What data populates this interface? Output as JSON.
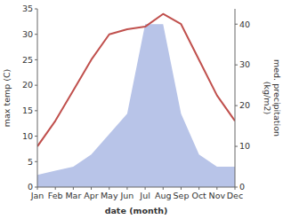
{
  "chart_data": {
    "type": "line",
    "categories": [
      "Jan",
      "Feb",
      "Mar",
      "Apr",
      "May",
      "Jun",
      "Jul",
      "Aug",
      "Sep",
      "Oct",
      "Nov",
      "Dec"
    ],
    "xlabel": "date (month)",
    "ylabel": "max temp (C)",
    "y2label": "med. precipitation\n(kg/m2)",
    "series": [
      {
        "type": "area",
        "axis": "y2",
        "color": "#b8c4e8",
        "values": [
          3,
          4,
          5,
          8,
          13,
          18,
          40,
          40,
          18,
          8,
          5,
          5
        ]
      },
      {
        "type": "line",
        "color": "#c0504d",
        "values": [
          8,
          13,
          19,
          25,
          30,
          31,
          31.5,
          34,
          32,
          25,
          18,
          13
        ]
      }
    ],
    "ylim": [
      0,
      35
    ],
    "yticks": [
      0,
      5,
      10,
      15,
      20,
      25,
      30,
      35
    ],
    "y2lim": [
      0,
      43.75
    ],
    "y2ticks": [
      0,
      10,
      20,
      30,
      40
    ],
    "grid": false
  }
}
